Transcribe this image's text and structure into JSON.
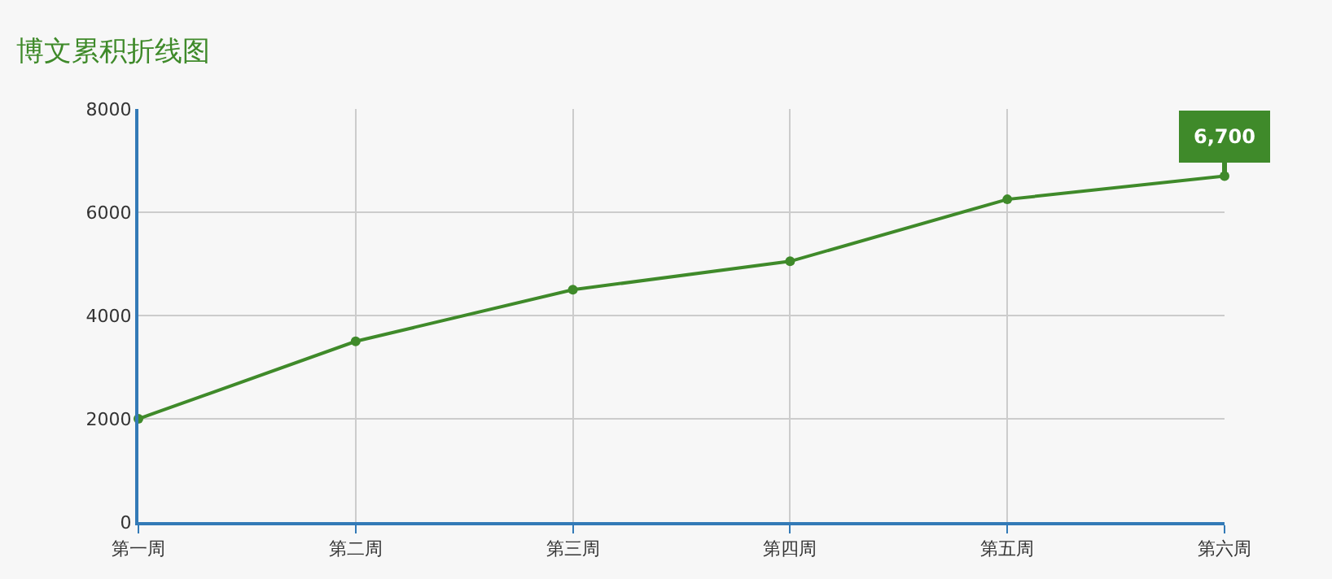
{
  "chart_data": {
    "type": "line",
    "title": "博文累积折线图",
    "categories": [
      "第一周",
      "第二周",
      "第三周",
      "第四周",
      "第五周",
      "第六周"
    ],
    "series": [
      {
        "color": "#3f8a2a",
        "values": [
          2000,
          3500,
          4500,
          5050,
          6250,
          6700
        ]
      }
    ],
    "ylim": [
      0,
      8000
    ],
    "yticks": [
      0,
      2000,
      4000,
      6000,
      8000
    ],
    "grid": true,
    "marker": "circle",
    "line_style": "solid",
    "legend": false,
    "annotations": [
      {
        "text": "6,700",
        "x": "第六周",
        "y": 6700
      }
    ]
  }
}
